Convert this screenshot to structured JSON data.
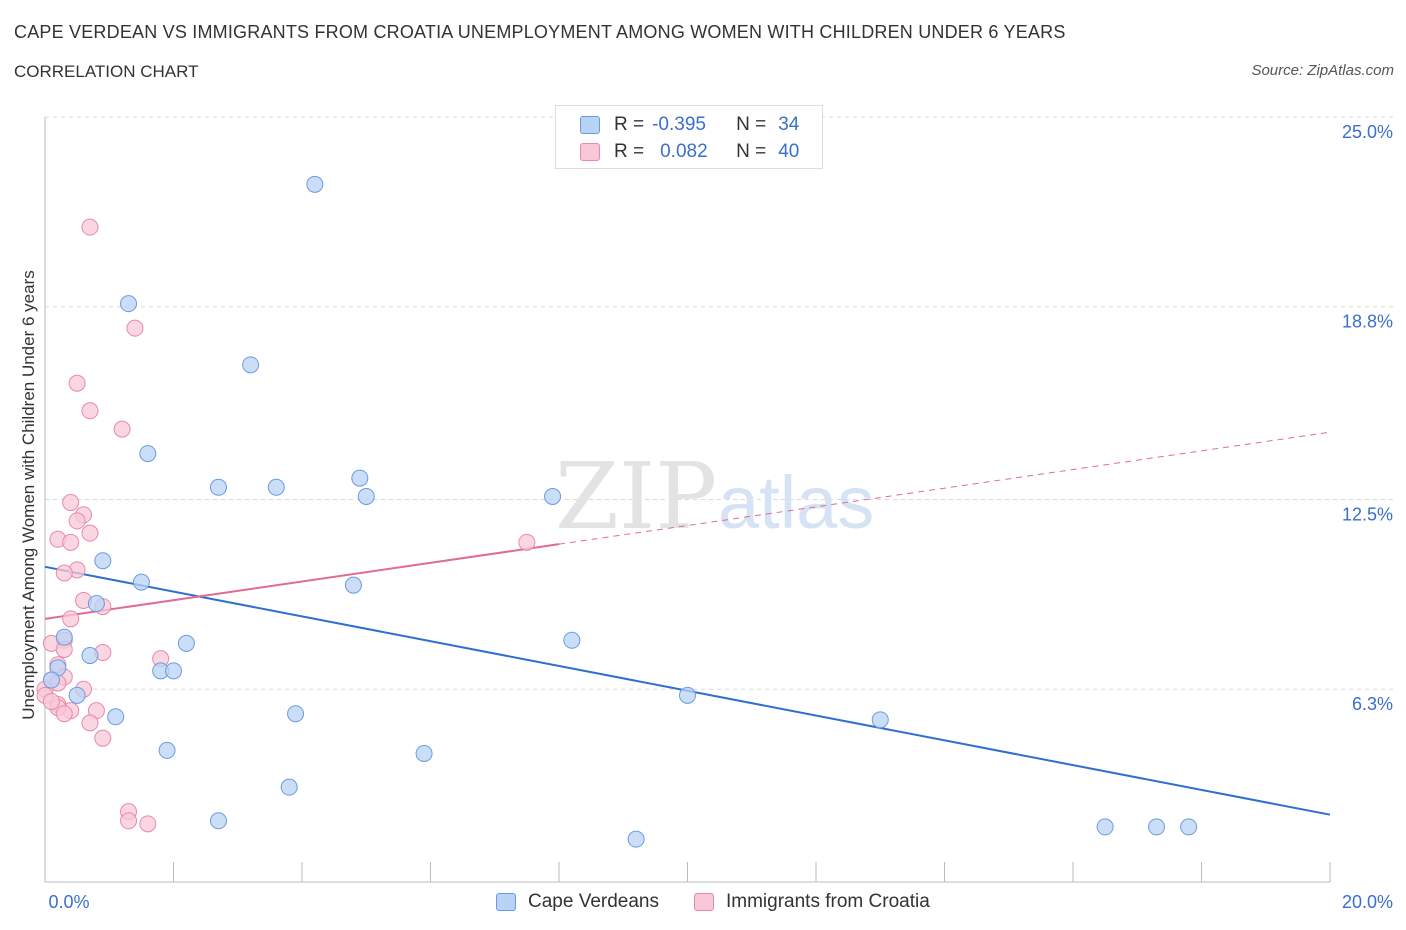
{
  "header": {
    "title": "CAPE VERDEAN VS IMMIGRANTS FROM CROATIA UNEMPLOYMENT AMONG WOMEN WITH CHILDREN UNDER 6 YEARS",
    "subtitle": "CORRELATION CHART",
    "source": "Source: ZipAtlas.com"
  },
  "colors": {
    "blue_fill": "#b9d3f5",
    "blue_stroke": "#6a9be0",
    "blue_line": "#2f6fd0",
    "pink_fill": "#f8c8d8",
    "pink_stroke": "#e88aa8",
    "pink_line": "#e06b94",
    "axis_label": "#3a6fcc",
    "grid": "#d8d8d8"
  },
  "legend": {
    "rows": [
      {
        "r_label": "R =",
        "r_value": "-0.395",
        "n_label": "N =",
        "n_value": "34"
      },
      {
        "r_label": "R =",
        "r_value": "0.082",
        "n_label": "N =",
        "n_value": "40"
      }
    ],
    "series_names": [
      "Cape Verdeans",
      "Immigrants from Croatia"
    ]
  },
  "watermark": {
    "part1": "ZIP",
    "part2": "atlas"
  },
  "chart_data": {
    "type": "scatter",
    "title": "CAPE VERDEAN VS IMMIGRANTS FROM CROATIA UNEMPLOYMENT AMONG WOMEN WITH CHILDREN UNDER 6 YEARS",
    "xlabel": "",
    "ylabel": "Unemployment Among Women with Children Under 6 years",
    "xlim": [
      0,
      20
    ],
    "ylim": [
      0,
      25
    ],
    "x_tick_labels": [
      "0.0%",
      "20.0%"
    ],
    "y_ticks": [
      6.3,
      12.5,
      18.8,
      25.0
    ],
    "y_tick_labels": [
      "6.3%",
      "12.5%",
      "18.8%",
      "25.0%"
    ],
    "grid": true,
    "series": [
      {
        "name": "Cape Verdeans",
        "R": -0.395,
        "N": 34,
        "trend": {
          "x0": 0,
          "y0": 10.3,
          "x1": 20,
          "y1": 2.2,
          "solid_to_x": 20
        },
        "points": [
          [
            4.2,
            22.8
          ],
          [
            1.3,
            18.9
          ],
          [
            3.2,
            16.9
          ],
          [
            1.6,
            14.0
          ],
          [
            2.7,
            12.9
          ],
          [
            3.6,
            12.9
          ],
          [
            4.9,
            13.2
          ],
          [
            5.0,
            12.6
          ],
          [
            7.9,
            12.6
          ],
          [
            0.9,
            10.5
          ],
          [
            1.5,
            9.8
          ],
          [
            4.8,
            9.7
          ],
          [
            0.8,
            9.1
          ],
          [
            0.3,
            8.0
          ],
          [
            2.2,
            7.8
          ],
          [
            8.2,
            7.9
          ],
          [
            0.7,
            7.4
          ],
          [
            0.2,
            7.0
          ],
          [
            1.8,
            6.9
          ],
          [
            2.0,
            6.9
          ],
          [
            0.1,
            6.6
          ],
          [
            0.5,
            6.1
          ],
          [
            10.0,
            6.1
          ],
          [
            3.9,
            5.5
          ],
          [
            1.1,
            5.4
          ],
          [
            13.0,
            5.3
          ],
          [
            1.9,
            4.3
          ],
          [
            5.9,
            4.2
          ],
          [
            3.8,
            3.1
          ],
          [
            2.7,
            2.0
          ],
          [
            9.2,
            1.4
          ],
          [
            16.5,
            1.8
          ],
          [
            17.3,
            1.8
          ],
          [
            17.8,
            1.8
          ]
        ]
      },
      {
        "name": "Immigrants from Croatia",
        "R": 0.082,
        "N": 40,
        "trend": {
          "x0": 0,
          "y0": 8.6,
          "x1": 20,
          "y1": 14.7,
          "solid_to_x": 8.0
        },
        "points": [
          [
            0.7,
            21.4
          ],
          [
            1.4,
            18.1
          ],
          [
            0.5,
            16.3
          ],
          [
            0.7,
            15.4
          ],
          [
            1.2,
            14.8
          ],
          [
            0.4,
            12.4
          ],
          [
            0.6,
            12.0
          ],
          [
            0.5,
            11.8
          ],
          [
            0.7,
            11.4
          ],
          [
            0.2,
            11.2
          ],
          [
            0.4,
            11.1
          ],
          [
            7.5,
            11.1
          ],
          [
            0.5,
            10.2
          ],
          [
            0.3,
            10.1
          ],
          [
            0.6,
            9.2
          ],
          [
            0.9,
            9.0
          ],
          [
            0.4,
            8.6
          ],
          [
            0.3,
            7.9
          ],
          [
            0.1,
            7.8
          ],
          [
            0.3,
            7.6
          ],
          [
            0.9,
            7.5
          ],
          [
            1.8,
            7.3
          ],
          [
            0.2,
            7.1
          ],
          [
            0.1,
            6.6
          ],
          [
            0.3,
            6.7
          ],
          [
            0.2,
            6.5
          ],
          [
            0.0,
            6.3
          ],
          [
            0.6,
            6.3
          ],
          [
            0.0,
            6.1
          ],
          [
            0.2,
            5.8
          ],
          [
            0.4,
            5.6
          ],
          [
            0.2,
            5.7
          ],
          [
            0.8,
            5.6
          ],
          [
            0.3,
            5.5
          ],
          [
            0.7,
            5.2
          ],
          [
            0.9,
            4.7
          ],
          [
            1.3,
            2.3
          ],
          [
            1.3,
            2.0
          ],
          [
            1.6,
            1.9
          ],
          [
            0.1,
            5.9
          ]
        ]
      }
    ]
  }
}
